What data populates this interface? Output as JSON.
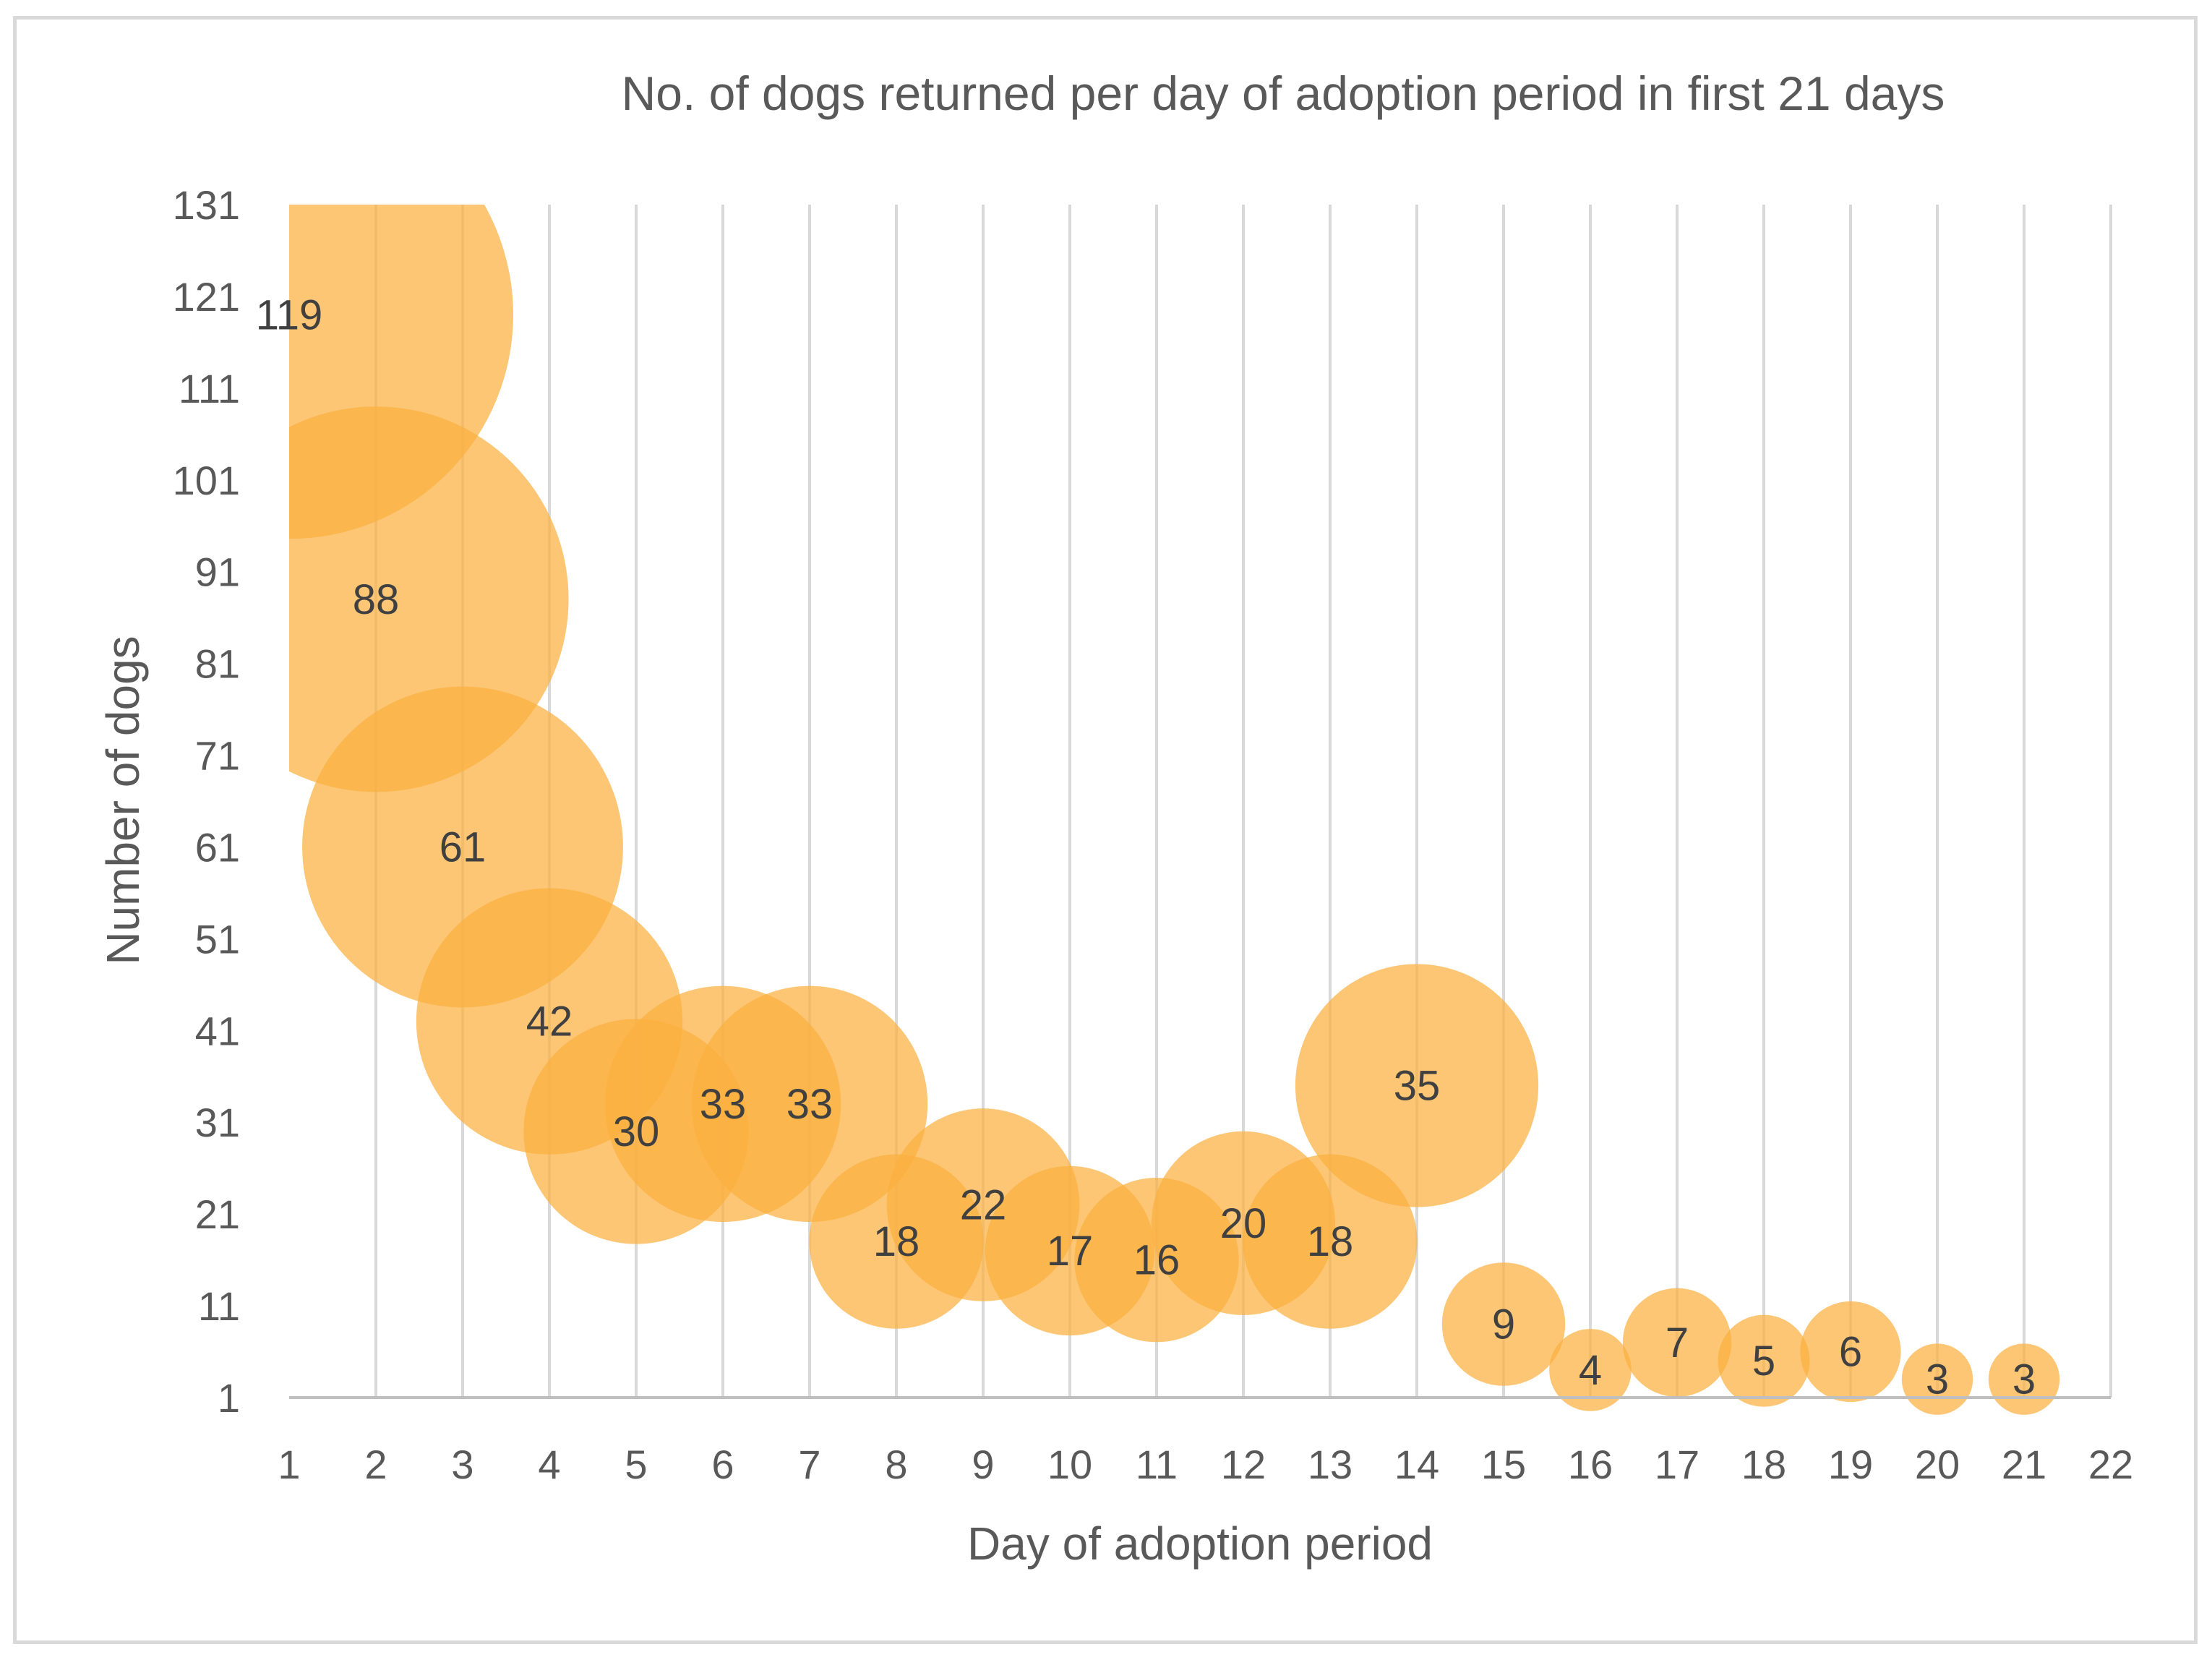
{
  "chart_data": {
    "type": "bubble",
    "title": "No. of dogs returned per day of adoption period in first 21 days",
    "xlabel": "Day of adoption period",
    "ylabel": "Number of dogs",
    "xlim": [
      1,
      22
    ],
    "ylim": [
      1,
      131
    ],
    "x_ticks": [
      1,
      2,
      3,
      4,
      5,
      6,
      7,
      8,
      9,
      10,
      11,
      12,
      13,
      14,
      15,
      16,
      17,
      18,
      19,
      20,
      21,
      22
    ],
    "y_ticks": [
      1,
      11,
      21,
      31,
      41,
      51,
      61,
      71,
      81,
      91,
      101,
      111,
      121,
      131
    ],
    "grid": "vertical",
    "bubble_color": "#fbb040",
    "x": [
      1,
      2,
      3,
      4,
      5,
      6,
      7,
      8,
      9,
      10,
      11,
      12,
      13,
      14,
      15,
      16,
      17,
      18,
      19,
      20,
      21
    ],
    "values": [
      119,
      88,
      61,
      42,
      30,
      33,
      33,
      18,
      22,
      17,
      16,
      20,
      18,
      35,
      9,
      4,
      7,
      5,
      6,
      3,
      3
    ],
    "labels": [
      "119",
      "88",
      "61",
      "42",
      "30",
      "33",
      "33",
      "18",
      "22",
      "17",
      "16",
      "20",
      "18",
      "35",
      "9",
      "4",
      "7",
      "5",
      "6",
      "3",
      "3"
    ]
  }
}
